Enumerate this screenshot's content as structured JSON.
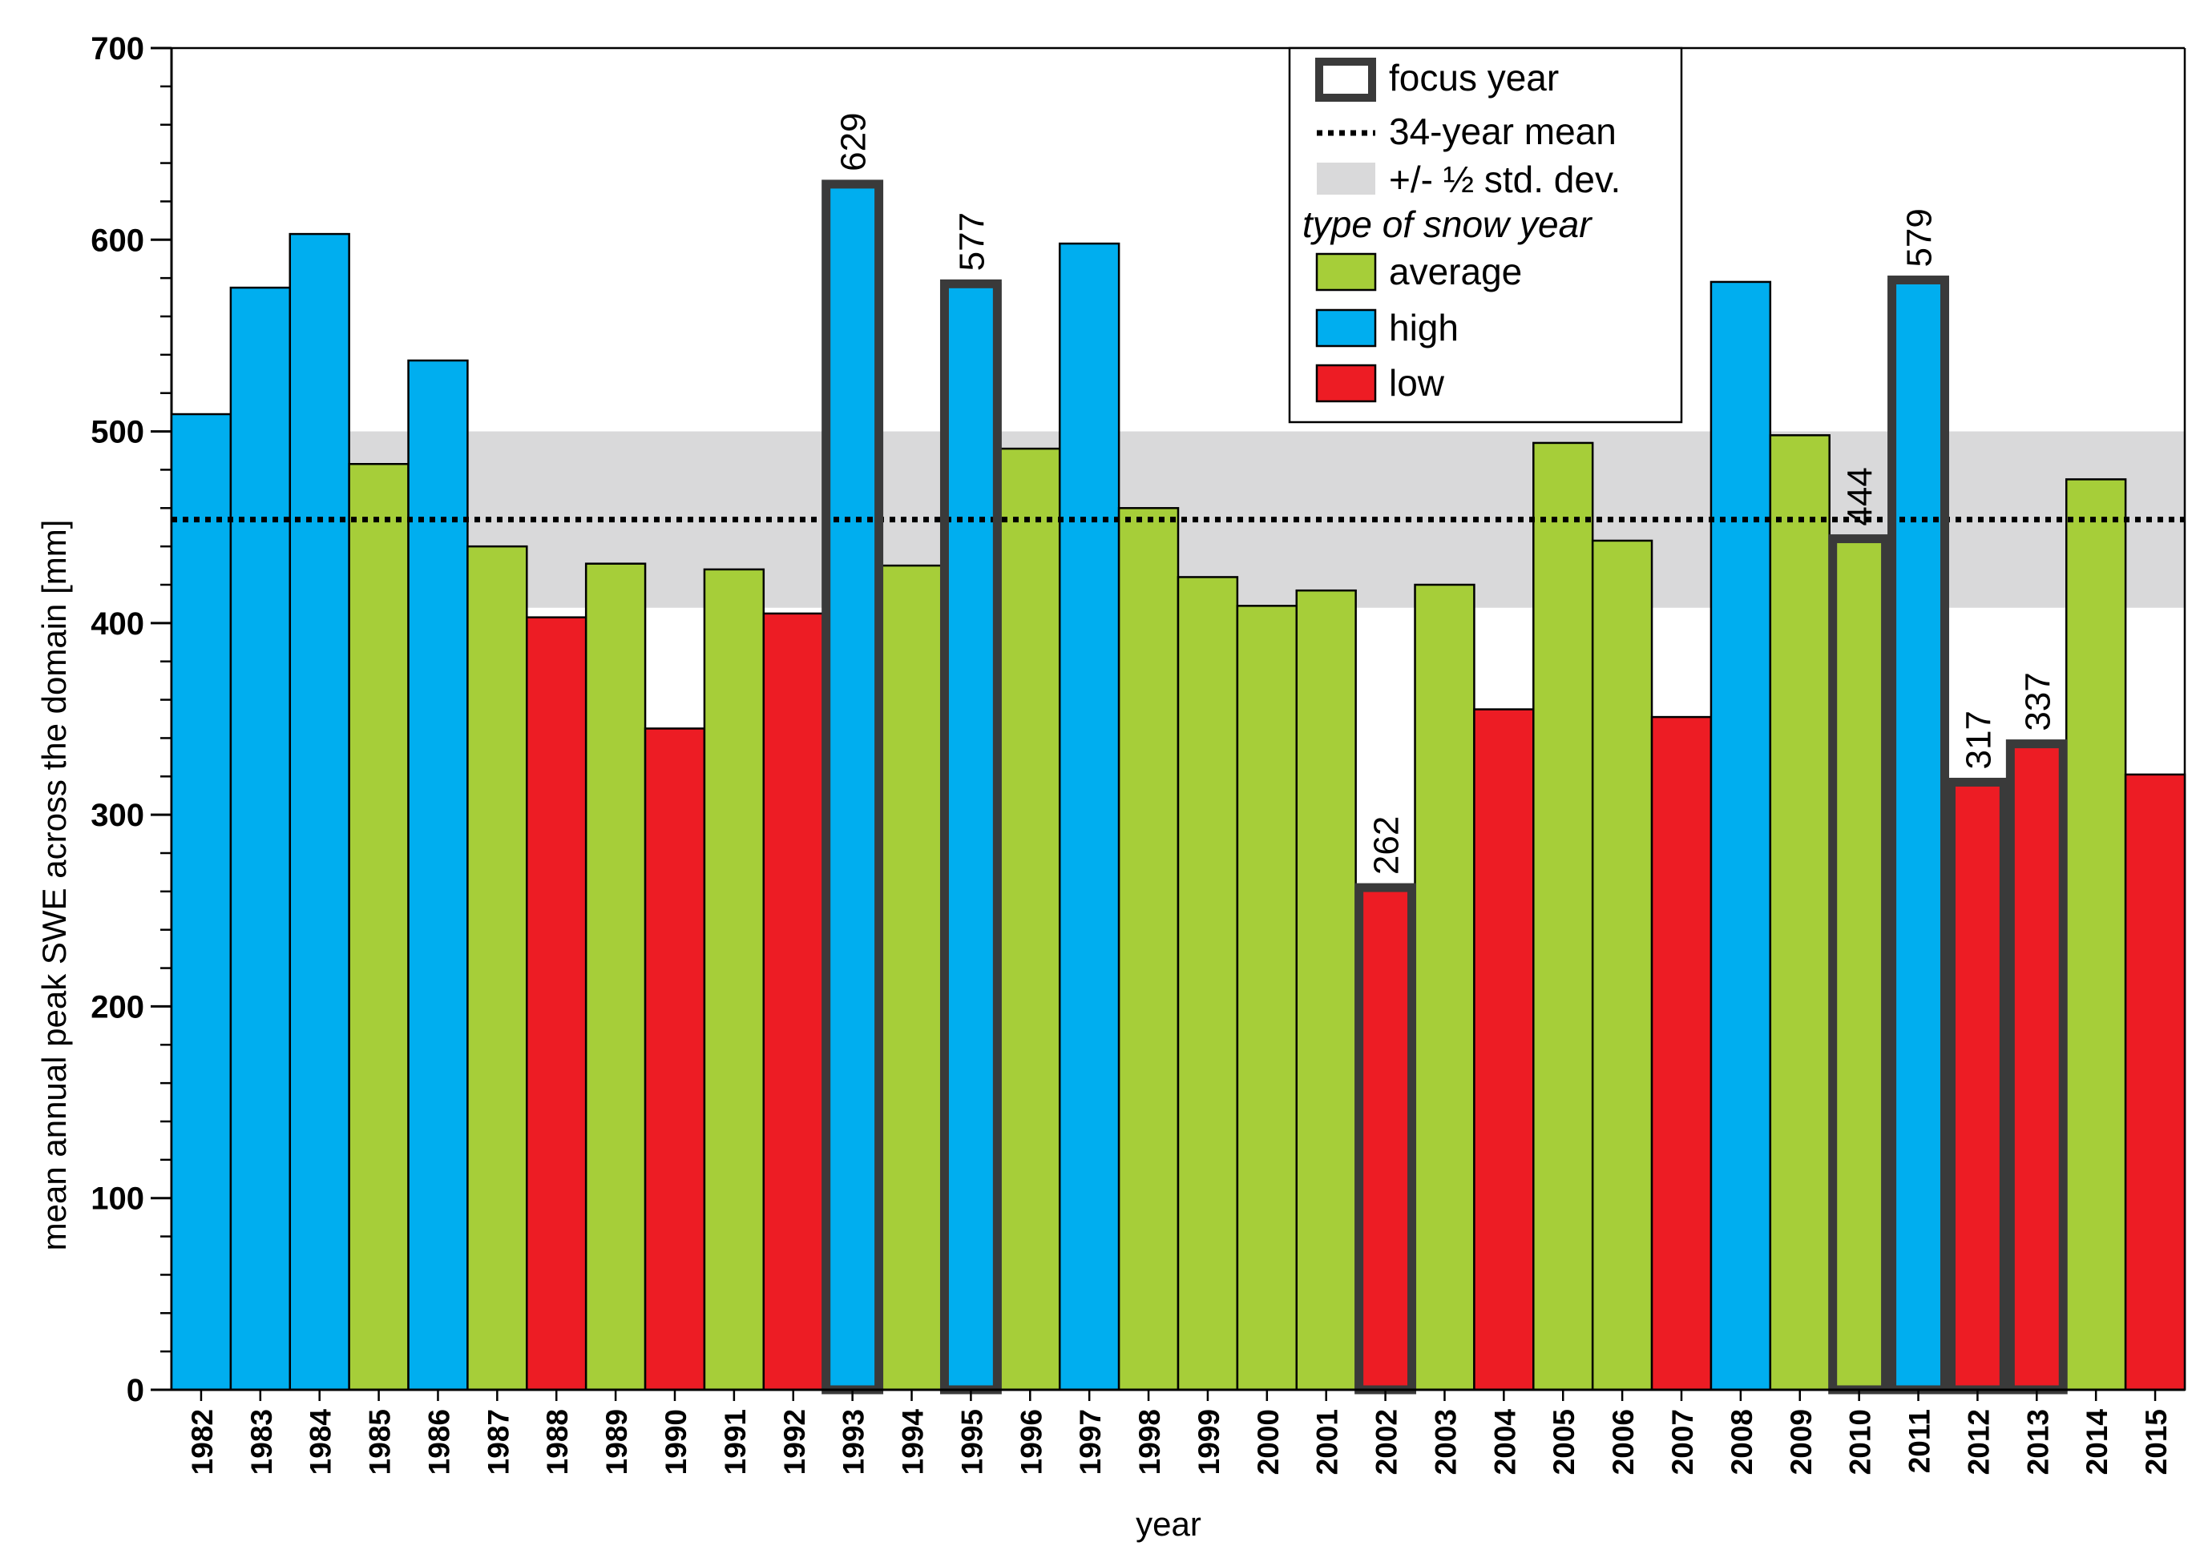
{
  "chart_data": {
    "type": "bar",
    "xlabel": "year",
    "ylabel": "mean annual peak SWE across the domain [mm]",
    "ylim": [
      0,
      700
    ],
    "yticks": [
      0,
      100,
      200,
      300,
      400,
      500,
      600,
      700
    ],
    "categories": [
      "1982",
      "1983",
      "1984",
      "1985",
      "1986",
      "1987",
      "1988",
      "1989",
      "1990",
      "1991",
      "1992",
      "1993",
      "1994",
      "1995",
      "1996",
      "1997",
      "1998",
      "1999",
      "2000",
      "2001",
      "2002",
      "2003",
      "2004",
      "2005",
      "2006",
      "2007",
      "2008",
      "2009",
      "2010",
      "2011",
      "2012",
      "2013",
      "2014",
      "2015"
    ],
    "values": [
      509,
      575,
      603,
      483,
      537,
      440,
      403,
      431,
      345,
      428,
      405,
      629,
      430,
      577,
      491,
      598,
      460,
      424,
      409,
      417,
      262,
      420,
      355,
      494,
      443,
      351,
      578,
      498,
      444,
      579,
      317,
      337,
      475,
      321
    ],
    "types": [
      "high",
      "high",
      "high",
      "average",
      "high",
      "average",
      "low",
      "average",
      "low",
      "average",
      "low",
      "high",
      "average",
      "high",
      "average",
      "high",
      "average",
      "average",
      "average",
      "average",
      "low",
      "average",
      "low",
      "average",
      "average",
      "low",
      "high",
      "average",
      "average",
      "high",
      "low",
      "low",
      "average",
      "low"
    ],
    "focus_years": [
      "1993",
      "1995",
      "2002",
      "2010",
      "2011",
      "2012",
      "2013"
    ],
    "focus_labels": {
      "1993": "629",
      "1995": "577",
      "2002": "262",
      "2010": "444",
      "2011": "579",
      "2012": "317",
      "2013": "337"
    },
    "mean": 454,
    "std_band": [
      408,
      500
    ],
    "colors": {
      "average": "#a6ce39",
      "high": "#00aeef",
      "low": "#ed1c24",
      "band": "#d9d9da",
      "focus_outline": "#3a3a3a"
    },
    "legend": {
      "position": "top-right",
      "focus": "focus year",
      "mean": "34-year mean",
      "band": "+/- ½ std. dev.",
      "heading": "type of snow year",
      "average": "average",
      "high": "high",
      "low": "low"
    }
  }
}
